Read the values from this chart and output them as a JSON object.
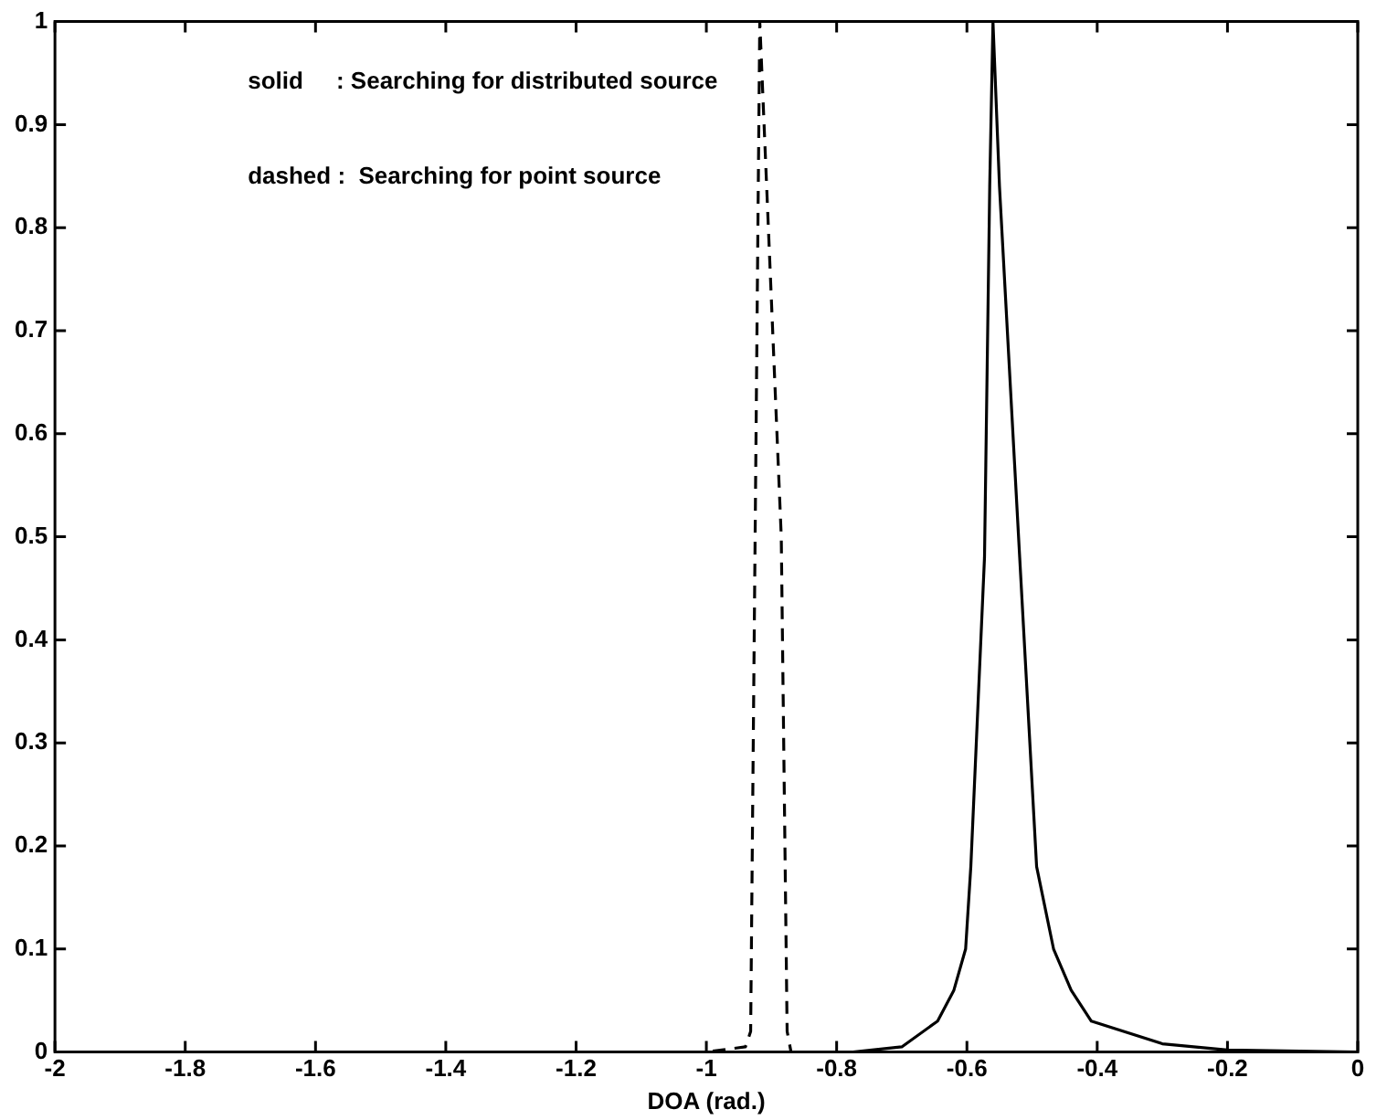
{
  "chart_data": {
    "type": "line",
    "xlabel": "DOA (rad.)",
    "annotations": [
      "solid     : Searching for distributed source",
      "dashed :  Searching for point source"
    ],
    "xlim": [
      -2,
      0
    ],
    "xticks": [
      -2,
      -1.8,
      -1.6,
      -1.4,
      -1.2,
      -1,
      -0.8,
      -0.6,
      -0.4,
      -0.2,
      0
    ],
    "ylim": [
      0,
      1
    ],
    "yticks": [
      0,
      0.1,
      0.2,
      0.3,
      0.4,
      0.5,
      0.6,
      0.7,
      0.8,
      0.9,
      1
    ],
    "grid": false,
    "legend": false,
    "marker": "none",
    "series": [
      {
        "color": "#000000",
        "line_style": "solid",
        "x": [
          -2,
          -1,
          -0.8,
          -0.775,
          -0.7,
          -0.645,
          -0.62,
          -0.602,
          -0.594,
          -0.573,
          -0.565,
          -0.56,
          -0.55,
          -0.519,
          -0.493,
          -0.467,
          -0.44,
          -0.409,
          -0.3,
          -0.2,
          0
        ],
        "values": [
          0,
          0,
          0,
          0,
          0.005,
          0.03,
          0.06,
          0.1,
          0.18,
          0.48,
          0.84,
          1,
          0.84,
          0.48,
          0.18,
          0.1,
          0.06,
          0.03,
          0.008,
          0.002,
          0
        ]
      },
      {
        "color": "#000000",
        "line_style": "dashed",
        "x": [
          -2,
          -1,
          -0.94,
          -0.932,
          -0.918,
          -0.885,
          -0.876,
          -0.87,
          -0.8,
          0
        ],
        "values": [
          0,
          0,
          0.005,
          0.02,
          1,
          0.5,
          0.02,
          0,
          0,
          0
        ]
      }
    ]
  }
}
